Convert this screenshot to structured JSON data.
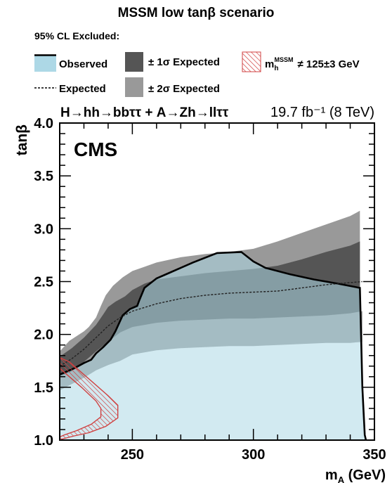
{
  "chart_data": {
    "type": "area",
    "title": "MSSM low tanβ scenario",
    "xlabel": "m",
    "xlabel_sub": "A",
    "xlabel_unit": " (GeV)",
    "ylabel": "tanβ",
    "xlim": [
      220,
      350
    ],
    "ylim": [
      1.0,
      4.0
    ],
    "x_ticks": [
      250,
      300,
      350
    ],
    "y_ticks": [
      1.0,
      1.5,
      2.0,
      2.5,
      3.0,
      3.5,
      4.0
    ],
    "y_tick_labels": [
      "1.0",
      "1.5",
      "2.0",
      "2.5",
      "3.0",
      "3.5",
      "4.0"
    ],
    "cms_label": "CMS",
    "process_label": "H→hh→bbττ + A→Zh→llττ",
    "lumi_label": "19.7 fb⁻¹ (8 TeV)",
    "legend": {
      "header": "95% CL Excluded:",
      "observed": "Observed",
      "expected": "Expected",
      "one_sigma": "± 1σ Expected",
      "two_sigma": "± 2σ Expected",
      "mh_prefix": "m",
      "mh_sub": "h",
      "mh_sup": "MSSM",
      "mh_suffix": "≠ 125±3 GeV"
    },
    "colors": {
      "observed_fill": "#add8e6",
      "one_sigma": "#555555",
      "two_sigma": "#999999",
      "mh_hatch": "#d04040"
    },
    "series": [
      {
        "name": "Observed",
        "x": [
          220,
          226,
          230,
          233,
          235,
          238,
          241,
          243,
          246,
          249,
          252,
          253,
          255,
          260,
          265,
          275,
          285,
          295,
          300,
          305,
          315,
          325,
          335,
          344,
          345,
          346,
          346.5
        ],
        "y": [
          1.62,
          1.68,
          1.73,
          1.76,
          1.82,
          1.88,
          1.95,
          2.03,
          2.18,
          2.24,
          2.27,
          2.33,
          2.44,
          2.53,
          2.58,
          2.68,
          2.77,
          2.78,
          2.69,
          2.63,
          2.57,
          2.52,
          2.48,
          2.44,
          1.5,
          1.05,
          1.0
        ]
      },
      {
        "name": "Expected",
        "x": [
          220,
          225,
          230,
          235,
          240,
          245,
          250,
          260,
          270,
          280,
          290,
          300,
          310,
          320,
          330,
          340,
          345
        ],
        "y": [
          1.7,
          1.77,
          1.86,
          1.97,
          2.08,
          2.16,
          2.22,
          2.29,
          2.34,
          2.37,
          2.39,
          2.4,
          2.41,
          2.44,
          2.47,
          2.49,
          2.5
        ]
      },
      {
        "name": "± 1σ Expected",
        "upper": {
          "x": [
            220,
            225,
            230,
            235,
            238,
            240,
            243,
            247,
            250,
            255,
            260,
            270,
            280,
            290,
            300,
            310,
            320,
            330,
            340,
            344
          ],
          "y": [
            1.79,
            1.87,
            1.97,
            2.09,
            2.19,
            2.26,
            2.31,
            2.36,
            2.42,
            2.48,
            2.52,
            2.55,
            2.58,
            2.6,
            2.62,
            2.65,
            2.71,
            2.78,
            2.84,
            2.88
          ]
        },
        "lower": {
          "x": [
            220,
            225,
            230,
            235,
            240,
            245,
            250,
            260,
            270,
            280,
            290,
            300,
            310,
            320,
            330,
            340,
            345
          ],
          "y": [
            1.6,
            1.65,
            1.74,
            1.84,
            1.93,
            2.02,
            2.07,
            2.11,
            2.13,
            2.14,
            2.15,
            2.15,
            2.16,
            2.17,
            2.18,
            2.2,
            2.22
          ]
        }
      },
      {
        "name": "± 2σ Expected",
        "upper": {
          "x": [
            220,
            224,
            228,
            230,
            232,
            235,
            237,
            239,
            242,
            246,
            250,
            255,
            260,
            270,
            280,
            290,
            300,
            310,
            320,
            330,
            340,
            344
          ],
          "y": [
            1.84,
            1.94,
            2.0,
            2.03,
            2.07,
            2.16,
            2.27,
            2.37,
            2.46,
            2.54,
            2.6,
            2.64,
            2.68,
            2.73,
            2.76,
            2.78,
            2.81,
            2.88,
            2.96,
            3.04,
            3.12,
            3.17
          ]
        },
        "lower": {
          "x": [
            220,
            225,
            230,
            235,
            240,
            245,
            250,
            260,
            270,
            280,
            290,
            300,
            310,
            320,
            330,
            340,
            345
          ],
          "y": [
            1.47,
            1.53,
            1.59,
            1.66,
            1.71,
            1.75,
            1.81,
            1.85,
            1.87,
            1.88,
            1.89,
            1.89,
            1.9,
            1.91,
            1.92,
            1.92,
            1.93
          ]
        }
      }
    ],
    "mh_region": {
      "outer": {
        "x": [
          220,
          224,
          232,
          240,
          244,
          244,
          239,
          232,
          226,
          221,
          220
        ],
        "y": [
          1.78,
          1.74,
          1.58,
          1.42,
          1.33,
          1.21,
          1.13,
          1.07,
          1.04,
          1.01,
          1.0
        ]
      },
      "inner": {
        "x": [
          220,
          223,
          229,
          235,
          237,
          237,
          233,
          227,
          222,
          220
        ],
        "y": [
          1.68,
          1.62,
          1.5,
          1.37,
          1.3,
          1.22,
          1.15,
          1.09,
          1.05,
          1.03
        ]
      }
    }
  }
}
